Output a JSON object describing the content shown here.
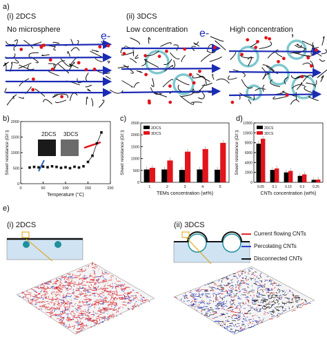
{
  "panel_a": {
    "letter": "a)",
    "col1": {
      "heading": "(i) 2DCS",
      "subheading": "No microsphere"
    },
    "col2": {
      "heading": "(ii) 3DCS",
      "subheading": "Low concentration"
    },
    "col3": {
      "subheading": "High concentration"
    },
    "electron": "e-"
  },
  "panel_b": {
    "letter": "b)",
    "inset_2d": "2DCS",
    "inset_3d": "3DCS"
  },
  "panel_c": {
    "letter": "c)"
  },
  "panel_d": {
    "letter": "d)"
  },
  "panel_e": {
    "letter": "e)",
    "left_heading": "(i) 2DCS",
    "right_heading": "(ii) 3DCS",
    "legend": [
      {
        "label": "Current flowing CNTs",
        "color": "#e0262c"
      },
      {
        "label": "Percolating CNTs",
        "color": "#2b3fc7"
      },
      {
        "label": "Disconnected CNTs",
        "color": "#111111"
      }
    ]
  },
  "colors": {
    "cnt_2d": "#111111",
    "cnt_3d": "#e0141c",
    "arrow": "#1c2bb5",
    "sphere": "#7ec8cf",
    "plate": "#cfe3f3"
  },
  "chart_data": [
    {
      "type": "scatter",
      "panel": "b",
      "xlabel": "Temperature (°C)",
      "ylabel": "Sheet resistance (Ω/□)",
      "xlim": [
        0,
        200
      ],
      "ylim": [
        0,
        2000
      ],
      "xticks": [
        "0",
        "50",
        "100",
        "150",
        "200"
      ],
      "yticks": [
        "0",
        "500",
        "1000",
        "1500",
        "2000"
      ],
      "x": [
        20,
        30,
        40,
        50,
        60,
        70,
        80,
        90,
        100,
        110,
        120,
        130,
        140,
        150,
        160,
        170,
        180
      ],
      "y": [
        520,
        540,
        525,
        550,
        530,
        560,
        540,
        510,
        530,
        500,
        545,
        520,
        560,
        700,
        900,
        1300,
        1650
      ]
    },
    {
      "type": "bar",
      "panel": "c",
      "xlabel": "TEMs concentration (wt%)",
      "ylabel": "Sheet resistance (Ω/□)",
      "ylim": [
        0,
        2500
      ],
      "yticks": [
        "0",
        "500",
        "1000",
        "1500",
        "2000",
        "2500"
      ],
      "categories": [
        "1",
        "2",
        "3",
        "4",
        "5"
      ],
      "series": [
        {
          "name": "2DCS",
          "color": "#000000",
          "values": [
            540,
            540,
            520,
            540,
            530
          ]
        },
        {
          "name": "3DCS",
          "color": "#e2141c",
          "values": [
            610,
            920,
            1290,
            1400,
            1660
          ]
        }
      ]
    },
    {
      "type": "bar",
      "panel": "d",
      "xlabel": "CNTs concentration (wt%)",
      "ylabel": "Sheet resistance (Ω/□)",
      "ylim": [
        0,
        12000
      ],
      "yticks": [
        "0",
        "2000",
        "4000",
        "6000",
        "8000",
        "10000",
        "12000"
      ],
      "categories": [
        "0.05",
        "0.1",
        "0.15",
        "0.2",
        "0.25"
      ],
      "series": [
        {
          "name": "2DCS",
          "color": "#000000",
          "values": [
            7800,
            2500,
            2000,
            1300,
            500
          ]
        },
        {
          "name": "3DCS",
          "color": "#e2141c",
          "values": [
            8800,
            2800,
            2300,
            1600,
            550
          ]
        }
      ]
    }
  ]
}
